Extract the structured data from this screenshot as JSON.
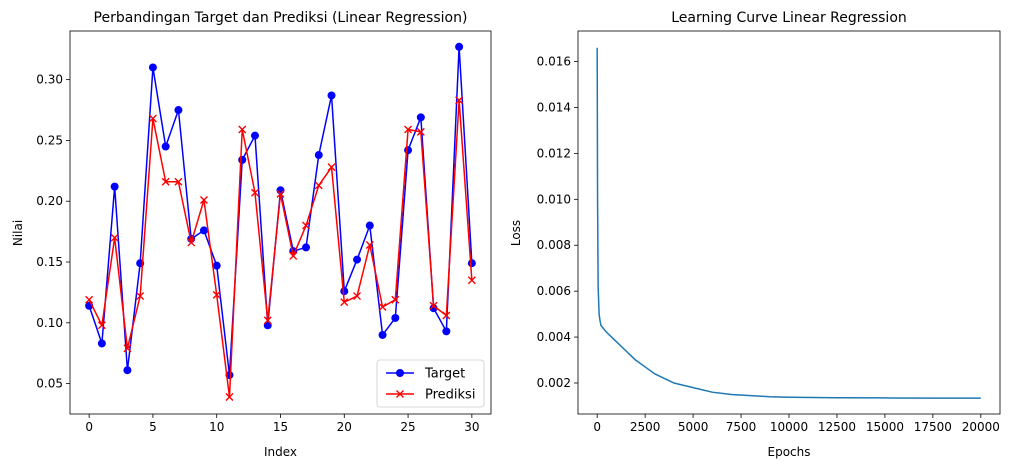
{
  "colors": {
    "target": "#0000ff",
    "prediksi": "#ff0000",
    "loss": "#1f77b4",
    "axis": "#000000"
  },
  "chart_data": [
    {
      "type": "line",
      "title": "Perbandingan Target dan Prediksi (Linear Regression)",
      "xlabel": "Index",
      "ylabel": "Nilai",
      "xlim": [
        -1.5,
        31.5
      ],
      "ylim": [
        0.025,
        0.34
      ],
      "xticks": [
        0,
        5,
        10,
        15,
        20,
        25,
        30
      ],
      "xtick_labels": [
        "0",
        "5",
        "10",
        "15",
        "20",
        "25",
        "30"
      ],
      "yticks": [
        0.05,
        0.1,
        0.15,
        0.2,
        0.25,
        0.3
      ],
      "ytick_labels": [
        "0.05",
        "0.10",
        "0.15",
        "0.20",
        "0.25",
        "0.30"
      ],
      "grid": false,
      "legend_position": "lower-right",
      "x": [
        0,
        1,
        2,
        3,
        4,
        5,
        6,
        7,
        8,
        9,
        10,
        11,
        12,
        13,
        14,
        15,
        16,
        17,
        18,
        19,
        20,
        21,
        22,
        23,
        24,
        25,
        26,
        27,
        28,
        29,
        30
      ],
      "series": [
        {
          "name": "Target",
          "marker": "circle",
          "values": [
            0.114,
            0.083,
            0.212,
            0.061,
            0.149,
            0.31,
            0.245,
            0.275,
            0.169,
            0.176,
            0.147,
            0.057,
            0.234,
            0.254,
            0.098,
            0.209,
            0.159,
            0.162,
            0.238,
            0.287,
            0.126,
            0.152,
            0.18,
            0.09,
            0.104,
            0.242,
            0.269,
            0.112,
            0.093,
            0.327,
            0.149
          ]
        },
        {
          "name": "Prediksi",
          "marker": "x",
          "values": [
            0.119,
            0.098,
            0.17,
            0.079,
            0.122,
            0.268,
            0.216,
            0.216,
            0.166,
            0.201,
            0.123,
            0.039,
            0.259,
            0.207,
            0.102,
            0.206,
            0.155,
            0.18,
            0.213,
            0.228,
            0.117,
            0.122,
            0.164,
            0.113,
            0.119,
            0.259,
            0.257,
            0.114,
            0.106,
            0.283,
            0.135
          ]
        }
      ]
    },
    {
      "type": "line",
      "title": "Learning Curve Linear Regression",
      "xlabel": "Epochs",
      "ylabel": "Loss",
      "xlim": [
        -1000,
        21000
      ],
      "ylim": [
        0.00065,
        0.01733
      ],
      "xticks": [
        0,
        2500,
        5000,
        7500,
        10000,
        12500,
        15000,
        17500,
        20000
      ],
      "xtick_labels": [
        "0",
        "2500",
        "5000",
        "7500",
        "10000",
        "12500",
        "15000",
        "17500",
        "20000"
      ],
      "yticks": [
        0.002,
        0.004,
        0.006,
        0.008,
        0.01,
        0.012,
        0.014,
        0.016
      ],
      "ytick_labels": [
        "0.002",
        "0.004",
        "0.006",
        "0.008",
        "0.010",
        "0.012",
        "0.014",
        "0.016"
      ],
      "grid": false,
      "x": [
        0,
        20,
        50,
        100,
        150,
        200,
        300,
        400,
        500,
        750,
        1000,
        1500,
        2000,
        2500,
        3000,
        3500,
        4000,
        5000,
        6000,
        7000,
        8000,
        9000,
        10000,
        12500,
        15000,
        17500,
        20000
      ],
      "series": [
        {
          "values": [
            0.0166,
            0.01,
            0.0062,
            0.005,
            0.0047,
            0.0045,
            0.0044,
            0.0043,
            0.0042,
            0.004,
            0.0038,
            0.0034,
            0.003,
            0.0027,
            0.0024,
            0.0022,
            0.002,
            0.0018,
            0.0016,
            0.0015,
            0.00145,
            0.0014,
            0.00138,
            0.00136,
            0.00135,
            0.00134,
            0.00134
          ]
        }
      ]
    }
  ]
}
